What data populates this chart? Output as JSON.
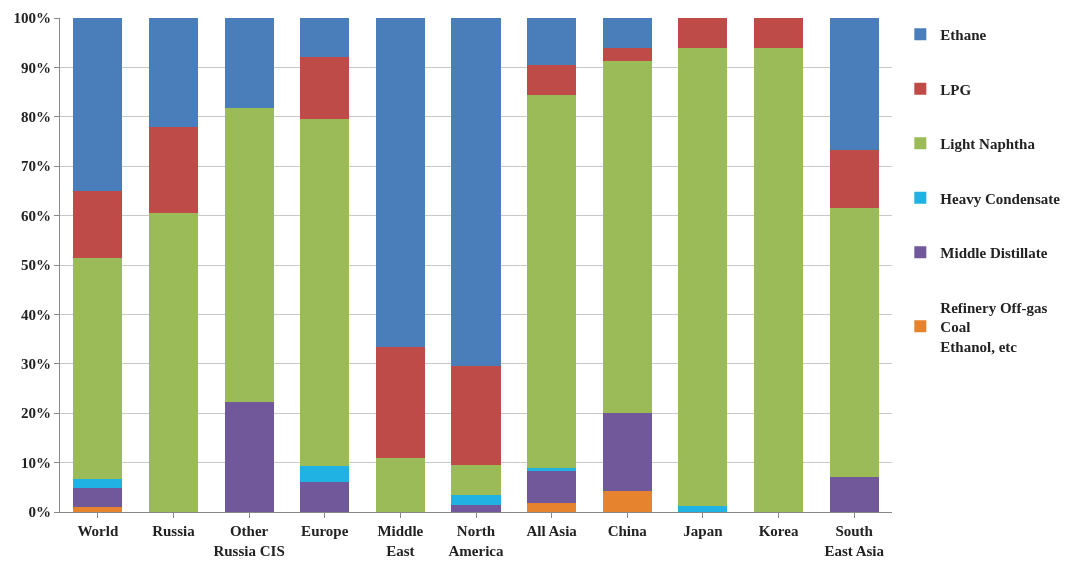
{
  "chart_data": {
    "type": "bar",
    "stacked": true,
    "categories": [
      "World",
      "Russia",
      "Other Russia CIS",
      "Europe",
      "Middle East",
      "North America",
      "All Asia",
      "China",
      "Japan",
      "Korea",
      "South East Asia"
    ],
    "series": [
      {
        "name": "Refinery Off-gas\nCoal\nEthanol, etc",
        "color": "#e6832f",
        "values": [
          1,
          0,
          0,
          0,
          0,
          0,
          1.8,
          4.2,
          0,
          0,
          0
        ]
      },
      {
        "name": "Middle Distillate",
        "color": "#71589a",
        "values": [
          3.8,
          0,
          22.3,
          6,
          0,
          1.5,
          6.5,
          15.8,
          0,
          0,
          7
        ]
      },
      {
        "name": "Heavy Condensate",
        "color": "#1fb2e3",
        "values": [
          1.9,
          0,
          0,
          3.3,
          0,
          2,
          0.6,
          0,
          1.2,
          0,
          0
        ]
      },
      {
        "name": "Light Naphtha",
        "color": "#9bbb59",
        "values": [
          44.8,
          60.5,
          59.5,
          70.2,
          11,
          6,
          75.6,
          71.3,
          92.8,
          94,
          54.5
        ]
      },
      {
        "name": "LPG",
        "color": "#be4b48",
        "values": [
          13.5,
          17.5,
          0,
          12.7,
          22.5,
          20,
          6,
          2.7,
          6,
          6,
          11.8
        ]
      },
      {
        "name": "Ethane",
        "color": "#4a7ebb",
        "values": [
          35,
          22,
          18.2,
          7.8,
          66.5,
          70.5,
          9.5,
          6,
          0,
          0,
          26.7
        ]
      }
    ],
    "ylim": [
      0,
      100
    ],
    "yticks": [
      {
        "value": 0,
        "label": "0%"
      },
      {
        "value": 10,
        "label": "10%"
      },
      {
        "value": 20,
        "label": "20%"
      },
      {
        "value": 30,
        "label": "30%"
      },
      {
        "value": 40,
        "label": "40%"
      },
      {
        "value": 50,
        "label": "50%"
      },
      {
        "value": 60,
        "label": "60%"
      },
      {
        "value": 70,
        "label": "70%"
      },
      {
        "value": 80,
        "label": "80%"
      },
      {
        "value": 90,
        "label": "90%"
      },
      {
        "value": 100,
        "label": "100%"
      }
    ],
    "grid": "y",
    "legend": "right"
  }
}
